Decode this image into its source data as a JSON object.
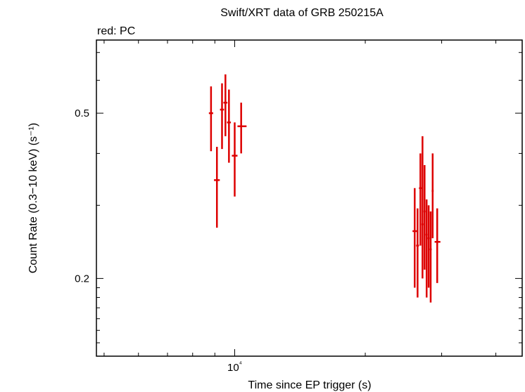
{
  "chart_data": {
    "type": "scatter",
    "title": "Swift/XRT data of GRB 250215A",
    "subtitle": "red: PC",
    "xlabel": "Time since EP trigger (s)",
    "ylabel": "Count Rate (0.3−10 keV) (s⁻¹)",
    "x_scale": "log",
    "y_scale": "log",
    "xlim": [
      4800,
      46000
    ],
    "ylim": [
      0.13,
      0.75
    ],
    "x_ticks": [
      {
        "value": 10000,
        "label": "10⁴"
      }
    ],
    "y_ticks": [
      {
        "value": 0.5,
        "label": "0.5"
      },
      {
        "value": 0.2,
        "label": "0.2"
      }
    ],
    "grid": false,
    "series": [
      {
        "name": "PC",
        "color": "#dd0000",
        "points": [
          {
            "x": 8820,
            "y": 0.5,
            "x_lo": 8720,
            "x_hi": 8920,
            "y_lo": 0.405,
            "y_hi": 0.58
          },
          {
            "x": 9100,
            "y": 0.345,
            "x_lo": 8960,
            "x_hi": 9240,
            "y_lo": 0.265,
            "y_hi": 0.415
          },
          {
            "x": 9350,
            "y": 0.51,
            "x_lo": 9250,
            "x_hi": 9450,
            "y_lo": 0.41,
            "y_hi": 0.59
          },
          {
            "x": 9520,
            "y": 0.53,
            "x_lo": 9420,
            "x_hi": 9620,
            "y_lo": 0.44,
            "y_hi": 0.62
          },
          {
            "x": 9700,
            "y": 0.475,
            "x_lo": 9600,
            "x_hi": 9800,
            "y_lo": 0.38,
            "y_hi": 0.57
          },
          {
            "x": 10000,
            "y": 0.395,
            "x_lo": 9850,
            "x_hi": 10150,
            "y_lo": 0.315,
            "y_hi": 0.475
          },
          {
            "x": 10350,
            "y": 0.465,
            "x_lo": 10150,
            "x_hi": 10650,
            "y_lo": 0.4,
            "y_hi": 0.53
          },
          {
            "x": 26000,
            "y": 0.26,
            "x_lo": 25700,
            "x_hi": 26300,
            "y_lo": 0.19,
            "y_hi": 0.33
          },
          {
            "x": 26400,
            "y": 0.24,
            "x_lo": 26200,
            "x_hi": 26600,
            "y_lo": 0.18,
            "y_hi": 0.295
          },
          {
            "x": 26800,
            "y": 0.33,
            "x_lo": 26600,
            "x_hi": 27000,
            "y_lo": 0.24,
            "y_hi": 0.4
          },
          {
            "x": 27100,
            "y": 0.27,
            "x_lo": 26950,
            "x_hi": 27250,
            "y_lo": 0.2,
            "y_hi": 0.44
          },
          {
            "x": 27400,
            "y": 0.29,
            "x_lo": 27250,
            "x_hi": 27550,
            "y_lo": 0.21,
            "y_hi": 0.375
          },
          {
            "x": 27700,
            "y": 0.255,
            "x_lo": 27550,
            "x_hi": 27850,
            "y_lo": 0.18,
            "y_hi": 0.31
          },
          {
            "x": 28000,
            "y": 0.25,
            "x_lo": 27850,
            "x_hi": 28150,
            "y_lo": 0.19,
            "y_hi": 0.3
          },
          {
            "x": 28300,
            "y": 0.235,
            "x_lo": 28150,
            "x_hi": 28450,
            "y_lo": 0.175,
            "y_hi": 0.29
          },
          {
            "x": 28600,
            "y": 0.325,
            "x_lo": 28450,
            "x_hi": 28750,
            "y_lo": 0.25,
            "y_hi": 0.4
          },
          {
            "x": 29300,
            "y": 0.245,
            "x_lo": 28900,
            "x_hi": 29800,
            "y_lo": 0.195,
            "y_hi": 0.295
          }
        ]
      }
    ]
  }
}
